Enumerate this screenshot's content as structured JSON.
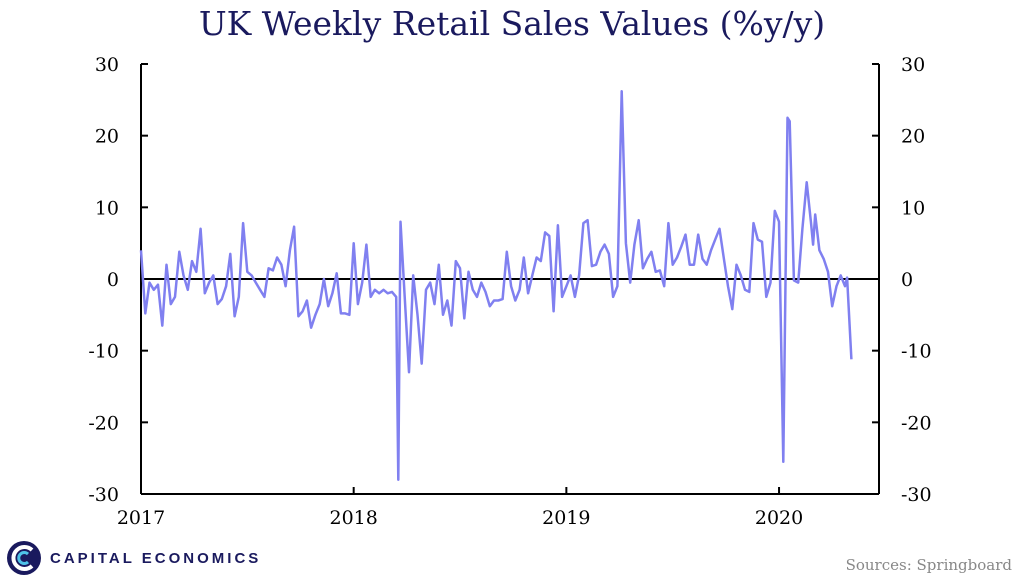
{
  "title": "UK Weekly Retail Sales Values (%y/y)",
  "source_note": "Sources: Springboard",
  "brand": {
    "name": "CAPITAL ECONOMICS",
    "logo_icon": "capital-economics-logo-icon"
  },
  "colors": {
    "series": "#8080f0",
    "axis": "#000000",
    "title": "#1a1a5e",
    "brand": "#1a1a5e",
    "source": "#888888"
  },
  "chart_data": {
    "type": "line",
    "title": "UK Weekly Retail Sales Values (%y/y)",
    "xlabel": "",
    "ylabel": "",
    "ylim": [
      -30,
      30
    ],
    "xlim": [
      "2017-01-01",
      "2020-06-20"
    ],
    "y_ticks": [
      30,
      20,
      10,
      0,
      -10,
      -20,
      -30
    ],
    "y_tick_labels_left": [
      "30",
      "20",
      "10",
      "0",
      "-10",
      "-20",
      "-30"
    ],
    "y_tick_labels_right": [
      "30",
      "20",
      "10",
      "0",
      "-10",
      "-20",
      "-30"
    ],
    "x_tick_labels": [
      "2017",
      "2018",
      "2019",
      "2020"
    ],
    "grid": false,
    "zero_line": true,
    "secondary_y_axis": true,
    "series": [
      {
        "values": [
          [
            2017.0,
            4.0
          ],
          [
            2017.02,
            -4.8
          ],
          [
            2017.04,
            -0.5
          ],
          [
            2017.06,
            -1.5
          ],
          [
            2017.08,
            -0.8
          ],
          [
            2017.1,
            -6.5
          ],
          [
            2017.12,
            2.0
          ],
          [
            2017.14,
            -3.5
          ],
          [
            2017.16,
            -2.5
          ],
          [
            2017.18,
            3.8
          ],
          [
            2017.2,
            0.5
          ],
          [
            2017.22,
            -1.5
          ],
          [
            2017.24,
            2.5
          ],
          [
            2017.26,
            1.0
          ],
          [
            2017.28,
            7.0
          ],
          [
            2017.3,
            -2.0
          ],
          [
            2017.32,
            -0.5
          ],
          [
            2017.34,
            0.5
          ],
          [
            2017.36,
            -3.5
          ],
          [
            2017.38,
            -2.8
          ],
          [
            2017.4,
            -1.0
          ],
          [
            2017.42,
            3.5
          ],
          [
            2017.44,
            -5.2
          ],
          [
            2017.46,
            -2.5
          ],
          [
            2017.48,
            7.8
          ],
          [
            2017.5,
            1.0
          ],
          [
            2017.52,
            0.5
          ],
          [
            2017.54,
            -0.5
          ],
          [
            2017.56,
            -1.5
          ],
          [
            2017.58,
            -2.5
          ],
          [
            2017.6,
            1.5
          ],
          [
            2017.62,
            1.2
          ],
          [
            2017.64,
            3.0
          ],
          [
            2017.66,
            2.0
          ],
          [
            2017.68,
            -1.0
          ],
          [
            2017.7,
            4.0
          ],
          [
            2017.72,
            7.3
          ],
          [
            2017.74,
            -5.2
          ],
          [
            2017.76,
            -4.5
          ],
          [
            2017.78,
            -3.0
          ],
          [
            2017.8,
            -6.8
          ],
          [
            2017.82,
            -5.0
          ],
          [
            2017.84,
            -3.5
          ],
          [
            2017.86,
            0.0
          ],
          [
            2017.88,
            -3.8
          ],
          [
            2017.9,
            -2.0
          ],
          [
            2017.92,
            0.8
          ],
          [
            2017.94,
            -4.8
          ],
          [
            2017.96,
            -4.8
          ],
          [
            2017.98,
            -5.0
          ],
          [
            2018.0,
            5.0
          ],
          [
            2018.02,
            -3.5
          ],
          [
            2018.04,
            -0.5
          ],
          [
            2018.06,
            4.8
          ],
          [
            2018.08,
            -2.5
          ],
          [
            2018.1,
            -1.5
          ],
          [
            2018.12,
            -2.0
          ],
          [
            2018.14,
            -1.5
          ],
          [
            2018.16,
            -2.0
          ],
          [
            2018.18,
            -1.8
          ],
          [
            2018.2,
            -2.5
          ],
          [
            2018.21,
            -28.0
          ],
          [
            2018.22,
            8.0
          ],
          [
            2018.24,
            -2.5
          ],
          [
            2018.26,
            -13.0
          ],
          [
            2018.28,
            0.5
          ],
          [
            2018.3,
            -5.0
          ],
          [
            2018.32,
            -11.8
          ],
          [
            2018.34,
            -1.5
          ],
          [
            2018.36,
            -0.5
          ],
          [
            2018.38,
            -3.5
          ],
          [
            2018.4,
            2.0
          ],
          [
            2018.42,
            -5.0
          ],
          [
            2018.44,
            -3.0
          ],
          [
            2018.46,
            -6.5
          ],
          [
            2018.48,
            2.5
          ],
          [
            2018.5,
            1.5
          ],
          [
            2018.52,
            -5.5
          ],
          [
            2018.54,
            1.0
          ],
          [
            2018.56,
            -1.5
          ],
          [
            2018.58,
            -2.5
          ],
          [
            2018.6,
            -0.5
          ],
          [
            2018.62,
            -1.8
          ],
          [
            2018.64,
            -3.8
          ],
          [
            2018.66,
            -3.0
          ],
          [
            2018.68,
            -3.0
          ],
          [
            2018.7,
            -2.8
          ],
          [
            2018.72,
            3.8
          ],
          [
            2018.74,
            -1.0
          ],
          [
            2018.76,
            -3.0
          ],
          [
            2018.78,
            -1.5
          ],
          [
            2018.8,
            3.0
          ],
          [
            2018.82,
            -2.0
          ],
          [
            2018.84,
            0.5
          ],
          [
            2018.86,
            3.0
          ],
          [
            2018.88,
            2.5
          ],
          [
            2018.9,
            6.5
          ],
          [
            2018.92,
            6.0
          ],
          [
            2018.94,
            -4.5
          ],
          [
            2018.96,
            7.5
          ],
          [
            2018.98,
            -2.5
          ],
          [
            2019.0,
            -1.0
          ],
          [
            2019.02,
            0.5
          ],
          [
            2019.04,
            -2.5
          ],
          [
            2019.06,
            0.5
          ],
          [
            2019.08,
            7.8
          ],
          [
            2019.1,
            8.2
          ],
          [
            2019.12,
            1.8
          ],
          [
            2019.14,
            2.0
          ],
          [
            2019.16,
            3.8
          ],
          [
            2019.18,
            4.8
          ],
          [
            2019.2,
            3.5
          ],
          [
            2019.22,
            -2.5
          ],
          [
            2019.24,
            -1.0
          ],
          [
            2019.26,
            26.2
          ],
          [
            2019.28,
            5.0
          ],
          [
            2019.3,
            -0.5
          ],
          [
            2019.32,
            4.8
          ],
          [
            2019.34,
            8.2
          ],
          [
            2019.36,
            1.5
          ],
          [
            2019.38,
            2.8
          ],
          [
            2019.4,
            3.8
          ],
          [
            2019.42,
            1.0
          ],
          [
            2019.44,
            1.2
          ],
          [
            2019.46,
            -1.0
          ],
          [
            2019.48,
            7.8
          ],
          [
            2019.5,
            2.0
          ],
          [
            2019.52,
            3.0
          ],
          [
            2019.54,
            4.5
          ],
          [
            2019.56,
            6.2
          ],
          [
            2019.58,
            2.0
          ],
          [
            2019.6,
            2.0
          ],
          [
            2019.62,
            6.2
          ],
          [
            2019.64,
            2.8
          ],
          [
            2019.66,
            2.0
          ],
          [
            2019.68,
            4.0
          ],
          [
            2019.7,
            5.5
          ],
          [
            2019.72,
            7.0
          ],
          [
            2019.74,
            3.0
          ],
          [
            2019.76,
            -1.0
          ],
          [
            2019.78,
            -4.2
          ],
          [
            2019.8,
            2.0
          ],
          [
            2019.82,
            0.5
          ],
          [
            2019.84,
            -1.5
          ],
          [
            2019.86,
            -1.8
          ],
          [
            2019.88,
            7.8
          ],
          [
            2019.9,
            5.5
          ],
          [
            2019.92,
            5.2
          ],
          [
            2019.94,
            -2.5
          ],
          [
            2019.96,
            -0.5
          ],
          [
            2019.98,
            9.5
          ],
          [
            2020.0,
            8.0
          ],
          [
            2020.02,
            -25.5
          ],
          [
            2020.04,
            22.5
          ],
          [
            2020.05,
            22.0
          ],
          [
            2020.07,
            -0.2
          ],
          [
            2020.09,
            -0.5
          ],
          [
            2020.11,
            7.0
          ],
          [
            2020.13,
            13.5
          ],
          [
            2020.15,
            8.0
          ],
          [
            2020.16,
            4.8
          ],
          [
            2020.17,
            9.0
          ],
          [
            2020.19,
            4.0
          ],
          [
            2020.21,
            2.8
          ],
          [
            2020.23,
            1.0
          ],
          [
            2020.25,
            -3.8
          ],
          [
            2020.27,
            -1.0
          ],
          [
            2020.29,
            0.5
          ],
          [
            2020.31,
            -1.0
          ],
          [
            2020.32,
            0.2
          ],
          [
            2020.34,
            -11.2
          ]
        ]
      }
    ]
  }
}
